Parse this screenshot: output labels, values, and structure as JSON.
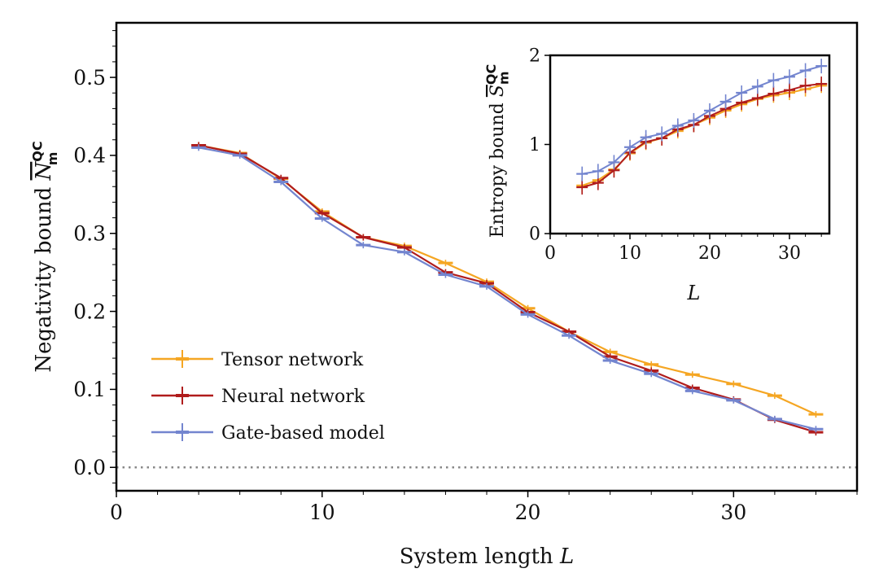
{
  "chart_data": [
    {
      "id": "main",
      "type": "line",
      "xlabel": "System length",
      "xlabel_var": "L",
      "ylabel": "Negativity bound",
      "ylabel_var": "N",
      "ylabel_sub": "m",
      "ylabel_sup": "QC",
      "xlim": [
        0,
        36
      ],
      "ylim": [
        -0.03,
        0.57
      ],
      "xticks": [
        0,
        10,
        20,
        30
      ],
      "xtick_labels": [
        "0",
        "10",
        "20",
        "30"
      ],
      "yticks": [
        0.0,
        0.1,
        0.2,
        0.3,
        0.4,
        0.5
      ],
      "ytick_labels": [
        "0.0",
        "0.1",
        "0.2",
        "0.3",
        "0.4",
        "0.5"
      ],
      "reference_line": {
        "y": 0.0,
        "style": "dotted"
      },
      "legend_position": "lower-left",
      "x": [
        4,
        6,
        8,
        10,
        12,
        14,
        16,
        18,
        20,
        22,
        24,
        26,
        28,
        30,
        32,
        34
      ],
      "series": [
        {
          "name": "Tensor network",
          "color": "#f5a623",
          "values": [
            0.413,
            0.403,
            0.37,
            0.328,
            0.295,
            0.284,
            0.262,
            0.238,
            0.204,
            0.174,
            0.148,
            0.132,
            0.119,
            0.107,
            0.092,
            0.068
          ]
        },
        {
          "name": "Neural network",
          "color": "#b01c1c",
          "values": [
            0.413,
            0.402,
            0.371,
            0.326,
            0.295,
            0.282,
            0.25,
            0.236,
            0.199,
            0.174,
            0.142,
            0.124,
            0.102,
            0.087,
            0.061,
            0.045
          ]
        },
        {
          "name": "Gate-based model",
          "color": "#7385cf",
          "values": [
            0.41,
            0.4,
            0.366,
            0.319,
            0.285,
            0.276,
            0.247,
            0.232,
            0.196,
            0.169,
            0.137,
            0.12,
            0.098,
            0.086,
            0.062,
            0.049
          ]
        }
      ]
    },
    {
      "id": "inset",
      "type": "line",
      "xlabel_var": "L",
      "ylabel": "Entropy bound",
      "ylabel_var": "S",
      "ylabel_sub": "m",
      "ylabel_sup": "QC",
      "xlim": [
        0,
        35
      ],
      "ylim": [
        0,
        2
      ],
      "xticks": [
        0,
        10,
        20,
        30
      ],
      "xtick_labels": [
        "0",
        "10",
        "20",
        "30"
      ],
      "yticks": [
        0,
        1,
        2
      ],
      "ytick_labels": [
        "0",
        "1",
        "2"
      ],
      "x": [
        4,
        6,
        8,
        10,
        12,
        14,
        16,
        18,
        20,
        22,
        24,
        26,
        28,
        30,
        32,
        34
      ],
      "series": [
        {
          "name": "Tensor network",
          "color": "#f5a623",
          "values": [
            0.54,
            0.6,
            0.72,
            0.9,
            1.02,
            1.07,
            1.15,
            1.22,
            1.3,
            1.38,
            1.45,
            1.51,
            1.55,
            1.58,
            1.62,
            1.66
          ]
        },
        {
          "name": "Neural network",
          "color": "#b01c1c",
          "values": [
            0.52,
            0.57,
            0.71,
            0.91,
            1.03,
            1.07,
            1.17,
            1.22,
            1.32,
            1.4,
            1.47,
            1.52,
            1.57,
            1.61,
            1.66,
            1.68
          ]
        },
        {
          "name": "Gate-based model",
          "color": "#7385cf",
          "values": [
            0.67,
            0.7,
            0.8,
            0.97,
            1.08,
            1.12,
            1.21,
            1.27,
            1.38,
            1.48,
            1.58,
            1.65,
            1.72,
            1.76,
            1.83,
            1.88
          ]
        }
      ]
    }
  ]
}
